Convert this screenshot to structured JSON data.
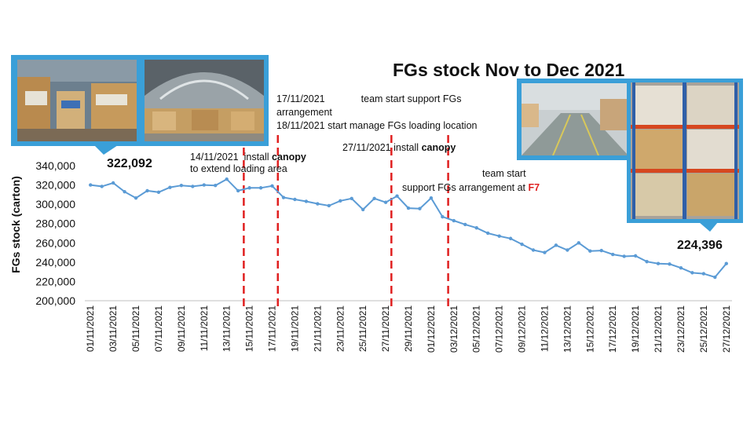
{
  "title": "FGs stock Nov to Dec 2021",
  "annotations": {
    "a1_date": "14/11/2021",
    "a1_text": "install",
    "a1_bold": "canopy",
    "a1_line2": "to extend loading area",
    "a2_line1_date": "17/11/2021",
    "a2_line1_text": "team start support FGs",
    "a2_line2": "arrangement",
    "a2_line3": "18/11/2021 start manage FGs loading location",
    "a3_text": "27/11/2021 install",
    "a3_bold": "canopy",
    "a4_line1": "team start",
    "a4_line2": "support FGs arrangement at",
    "a4_red": "F7",
    "callout_high": "322,092",
    "callout_low": "224,396"
  },
  "photos": [
    {
      "name": "warehouse-cartons-photo",
      "description": "stacked cartons in warehouse aisle"
    },
    {
      "name": "canopy-photo",
      "description": "warehouse interior with canopy roof"
    },
    {
      "name": "loading-area-photo",
      "description": "empty warehouse loading floor"
    },
    {
      "name": "racking-photo",
      "description": "pallet racking filled with cartons"
    }
  ],
  "colors": {
    "line": "#5b9bd5",
    "marker": "#5b9bd5",
    "vline": "#e02020",
    "frame": "#3a9fd8",
    "axis": "#bfbfbf"
  },
  "chart_data": {
    "type": "line",
    "title": "FGs stock Nov to Dec 2021",
    "ylabel": "FGs stock (carton)",
    "xlabel": "",
    "ylim": [
      200000,
      340000
    ],
    "yticks": [
      "200,000",
      "220,000",
      "240,000",
      "260,000",
      "280,000",
      "300,000",
      "320,000",
      "340,000"
    ],
    "grid": false,
    "x": [
      "01/11/2021",
      "02/11/2021",
      "03/11/2021",
      "04/11/2021",
      "05/11/2021",
      "06/11/2021",
      "07/11/2021",
      "08/11/2021",
      "09/11/2021",
      "10/11/2021",
      "11/11/2021",
      "12/11/2021",
      "13/11/2021",
      "14/11/2021",
      "15/11/2021",
      "16/11/2021",
      "17/11/2021",
      "18/11/2021",
      "19/11/2021",
      "20/11/2021",
      "21/11/2021",
      "22/11/2021",
      "23/11/2021",
      "24/11/2021",
      "25/11/2021",
      "26/11/2021",
      "27/11/2021",
      "28/11/2021",
      "29/11/2021",
      "30/11/2021",
      "01/12/2021",
      "02/12/2021",
      "03/12/2021",
      "04/12/2021",
      "05/12/2021",
      "06/12/2021",
      "07/12/2021",
      "08/12/2021",
      "09/12/2021",
      "10/12/2021",
      "11/12/2021",
      "12/12/2021",
      "13/12/2021",
      "14/12/2021",
      "15/12/2021",
      "16/12/2021",
      "17/12/2021",
      "18/12/2021",
      "19/12/2021",
      "20/12/2021",
      "21/12/2021",
      "22/12/2021",
      "23/12/2021",
      "24/12/2021",
      "25/12/2021",
      "26/12/2021",
      "27/12/2021"
    ],
    "xtick_labels": [
      "01/11/2021",
      "03/11/2021",
      "05/11/2021",
      "07/11/2021",
      "09/11/2021",
      "11/11/2021",
      "13/11/2021",
      "15/11/2021",
      "17/11/2021",
      "19/11/2021",
      "21/11/2021",
      "23/11/2021",
      "25/11/2021",
      "27/11/2021",
      "29/11/2021",
      "01/12/2021",
      "03/12/2021",
      "05/12/2021",
      "07/12/2021",
      "09/12/2021",
      "11/12/2021",
      "13/12/2021",
      "15/12/2021",
      "17/12/2021",
      "19/12/2021",
      "21/12/2021",
      "23/12/2021",
      "25/12/2021",
      "27/12/2021"
    ],
    "series": [
      {
        "values": [
          320000,
          318500,
          322092,
          313000,
          306500,
          314000,
          312500,
          317500,
          319500,
          318500,
          320000,
          319500,
          326000,
          314000,
          317000,
          317000,
          319000,
          307000,
          305000,
          303000,
          300500,
          298500,
          303500,
          306000,
          294500,
          306000,
          302000,
          308500,
          296000,
          295500,
          306500,
          287000,
          283000,
          279000,
          275500,
          270000,
          267000,
          264500,
          258500,
          252500,
          250000,
          257500,
          252500,
          260000,
          251500,
          252000,
          248000,
          246000,
          246500,
          240500,
          238500,
          238000,
          234000,
          229000,
          228000,
          224396,
          238500
        ]
      }
    ],
    "vlines": [
      "14/11/2021",
      "17/11/2021",
      "27/11/2021",
      "02/12/2021"
    ],
    "data_labels": [
      {
        "x": "03/11/2021",
        "text": "322,092"
      },
      {
        "x": "26/12/2021",
        "text": "224,396"
      }
    ]
  }
}
